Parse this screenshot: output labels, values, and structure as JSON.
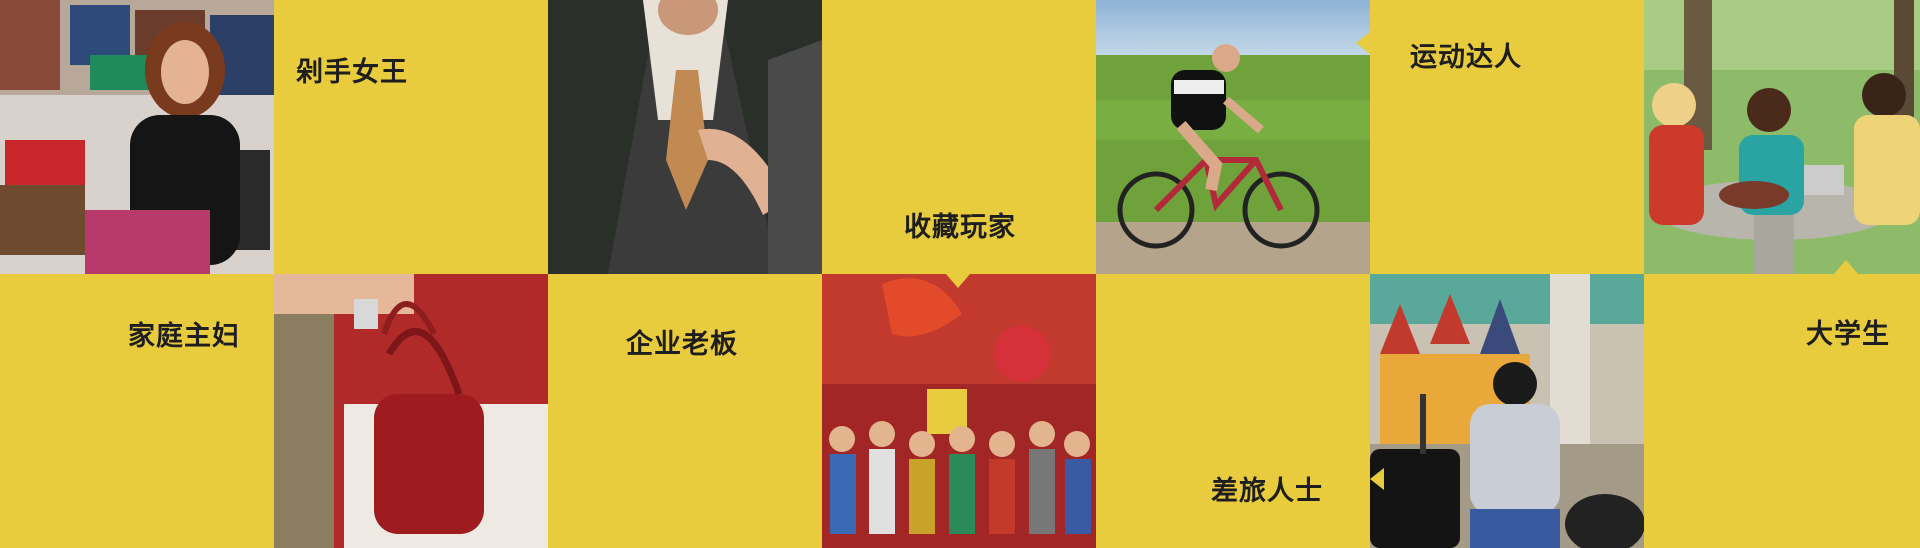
{
  "tiles": {
    "shopaholic": "剁手女王",
    "collector": "收藏玩家",
    "sports": "运动达人",
    "housewife": "家庭主妇",
    "boss": "企业老板",
    "traveler": "差旅人士",
    "student": "大学生"
  },
  "colors": {
    "accent_yellow": "#e8cc3d",
    "label_text": "#1e1e1e"
  }
}
